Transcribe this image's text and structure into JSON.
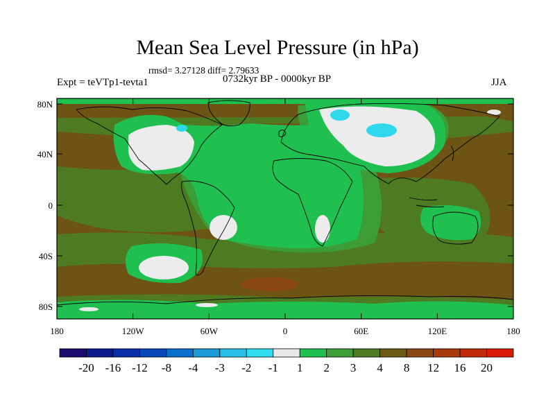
{
  "header": {
    "title": "Mean Sea Level Pressure (in hPa)",
    "stats": "rmsd= 3.27128 diff= 2.79633",
    "experiment": "Expt = teVTp1-tevta1",
    "period": "0732kyr BP - 0000kyr BP",
    "season": "JJA"
  },
  "axes": {
    "lat_labels": [
      "80N",
      "40N",
      "0",
      "40S",
      "80S"
    ],
    "lon_labels": [
      "180",
      "120W",
      "60W",
      "0",
      "60E",
      "120E",
      "180"
    ]
  },
  "colorbar": {
    "labels": [
      "-20",
      "-16",
      "-12",
      "-8",
      "-4",
      "-3",
      "-2",
      "-1",
      "1",
      "2",
      "3",
      "4",
      "8",
      "12",
      "16",
      "20"
    ],
    "colors": [
      "#1a0a6e",
      "#0a1a8c",
      "#0a2ea8",
      "#0a48b8",
      "#0a6fcc",
      "#1a9ad8",
      "#28bfe4",
      "#30dbee",
      "#e8e8e8",
      "#20c050",
      "#3c9c36",
      "#4e7a22",
      "#6a5a14",
      "#8a4812",
      "#a83a10",
      "#c22a0c",
      "#d81a08"
    ]
  },
  "palette": {
    "brown": "#6e5414",
    "olive": "#4e7a22",
    "midgreen": "#3c9c36",
    "green": "#20c050",
    "white": "#ececec",
    "cyan": "#30d8ec",
    "rust": "#8a4812"
  }
}
